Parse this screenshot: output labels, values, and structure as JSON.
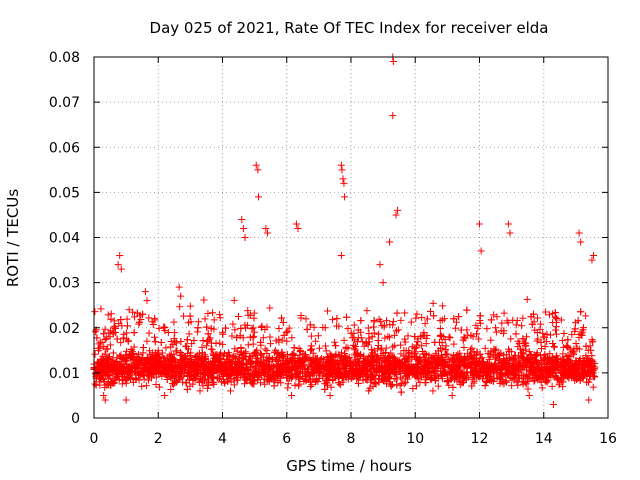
{
  "chart_data": {
    "type": "scatter",
    "title": "Day 025 of 2021, Rate Of TEC Index for receiver elda",
    "xlabel": "GPS time / hours",
    "ylabel": "ROTI / TECUs",
    "xlim": [
      0,
      16
    ],
    "ylim": [
      0,
      0.08
    ],
    "xticks": [
      0,
      2,
      4,
      6,
      8,
      10,
      12,
      14,
      16
    ],
    "yticks": [
      0,
      0.01,
      0.02,
      0.03,
      0.04,
      0.05,
      0.06,
      0.07,
      0.08
    ],
    "xtick_labels": [
      "0",
      "2",
      "4",
      "6",
      "8",
      "10",
      "12",
      "14",
      "16"
    ],
    "ytick_labels": [
      "0",
      "0.01",
      "0.02",
      "0.03",
      "0.04",
      "0.05",
      "0.06",
      "0.07",
      "0.08"
    ],
    "grid": true,
    "marker": "plus",
    "color": "#ff0000",
    "series": [
      {
        "name": "ROTI",
        "x": [
          0.75,
          0.8,
          0.85,
          1.6,
          1.65,
          2.65,
          2.7,
          4.6,
          4.65,
          4.7,
          5.05,
          5.1,
          5.12,
          5.35,
          5.4,
          6.3,
          6.35,
          7.7,
          7.72,
          7.75,
          7.78,
          7.8,
          7.7,
          8.9,
          9.0,
          9.2,
          9.3,
          9.3,
          9.32,
          9.4,
          9.45,
          12.0,
          12.05,
          12.9,
          12.95,
          15.1,
          15.15,
          15.5,
          15.55,
          0.3,
          0.35,
          1.0,
          2.2,
          3.3,
          4.25,
          6.15,
          7.35,
          8.55,
          10.55,
          11.15,
          13.55,
          14.3,
          15.4,
          0.5,
          2.0,
          3.5,
          4.0,
          6.0,
          7.2,
          8.3,
          10.2,
          11.8,
          12.5,
          13.2,
          14.7,
          15.2,
          0.1,
          1.2,
          2.4,
          3.6,
          4.4,
          5.8,
          6.6,
          7.0,
          8.1,
          9.7,
          10.8,
          11.6,
          12.3,
          13.7,
          14.1,
          15.3
        ],
        "y": [
          0.034,
          0.036,
          0.033,
          0.028,
          0.026,
          0.029,
          0.027,
          0.044,
          0.042,
          0.04,
          0.056,
          0.055,
          0.049,
          0.042,
          0.041,
          0.043,
          0.042,
          0.056,
          0.055,
          0.053,
          0.052,
          0.049,
          0.036,
          0.034,
          0.03,
          0.039,
          0.067,
          0.08,
          0.079,
          0.045,
          0.046,
          0.043,
          0.037,
          0.043,
          0.041,
          0.041,
          0.039,
          0.035,
          0.036,
          0.005,
          0.004,
          0.004,
          0.005,
          0.006,
          0.006,
          0.005,
          0.005,
          0.006,
          0.006,
          0.005,
          0.005,
          0.003,
          0.004,
          0.018,
          0.015,
          0.016,
          0.019,
          0.017,
          0.02,
          0.019,
          0.016,
          0.018,
          0.02,
          0.017,
          0.016,
          0.019,
          0.012,
          0.011,
          0.013,
          0.01,
          0.012,
          0.011,
          0.013,
          0.012,
          0.014,
          0.011,
          0.012,
          0.01,
          0.013,
          0.012,
          0.011,
          0.01
        ]
      }
    ],
    "bulk_noise": {
      "description": "dense cloud of ROTI points covering 0 to 15.6 hours",
      "x_range": [
        0,
        15.6
      ],
      "y_range": [
        0.002,
        0.028
      ],
      "typical": 0.011,
      "count": 4200
    }
  }
}
